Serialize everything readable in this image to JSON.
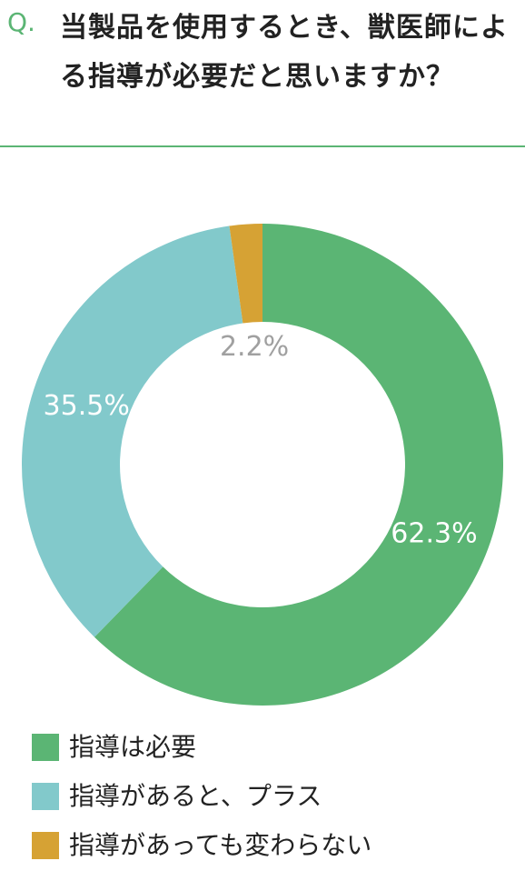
{
  "chart_data": {
    "type": "pie",
    "question_label": "Q.",
    "title": "当製品を使用するとき、獣医師による指導が必要だと思いますか？",
    "categories": [
      "指導は必要",
      "指導があると、プラス",
      "指導があっても変わらない"
    ],
    "values": [
      62.3,
      35.5,
      2.2
    ],
    "value_labels": [
      "62.3%",
      "35.5%",
      "2.2%"
    ],
    "colors": [
      "#5bb574",
      "#82c9cb",
      "#d6a234"
    ],
    "donut": true
  }
}
